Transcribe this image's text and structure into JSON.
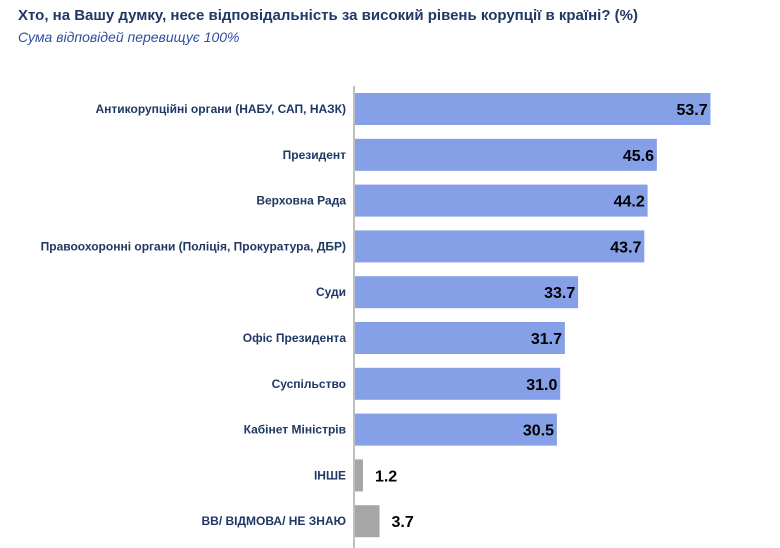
{
  "header": {
    "title": "Хто, на Вашу думку, несе відповідальність за високий рівень корупції в країні? (%)",
    "subtitle": "Сума відповідей перевищує 100%"
  },
  "colors": {
    "main_bar": "#86a0e8",
    "other_bar": "#a6a6a6",
    "axis": "#7f7f7f"
  },
  "chart_data": {
    "type": "bar",
    "orientation": "horizontal",
    "title": "Хто, на Вашу думку, несе відповідальність за високий рівень корупції в країні? (%)",
    "subtitle": "Сума відповідей перевищує 100%",
    "categories": [
      "Антикорупційні органи (НАБУ, САП, НАЗК)",
      "Президент",
      "Верховна Рада",
      "Правоохоронні органи (Поліція, Прокуратура, ДБР)",
      "Суди",
      "Офіс Президента",
      "Суспільство",
      "Кабінет Міністрів",
      "ІНШЕ",
      "ВВ/ ВІДМОВА/ НЕ ЗНАЮ"
    ],
    "values": [
      53.7,
      45.6,
      44.2,
      43.7,
      33.7,
      31.7,
      31.0,
      30.5,
      1.2,
      3.7
    ],
    "value_labels": [
      "53.7",
      "45.6",
      "44.2",
      "43.7",
      "33.7",
      "31.7",
      "31.0",
      "30.5",
      "1.2",
      "3.7"
    ],
    "bar_colors": [
      "#86a0e8",
      "#86a0e8",
      "#86a0e8",
      "#86a0e8",
      "#86a0e8",
      "#86a0e8",
      "#86a0e8",
      "#86a0e8",
      "#a6a6a6",
      "#a6a6a6"
    ],
    "xlim": [
      0,
      60
    ],
    "grid": false,
    "legend": "none"
  }
}
